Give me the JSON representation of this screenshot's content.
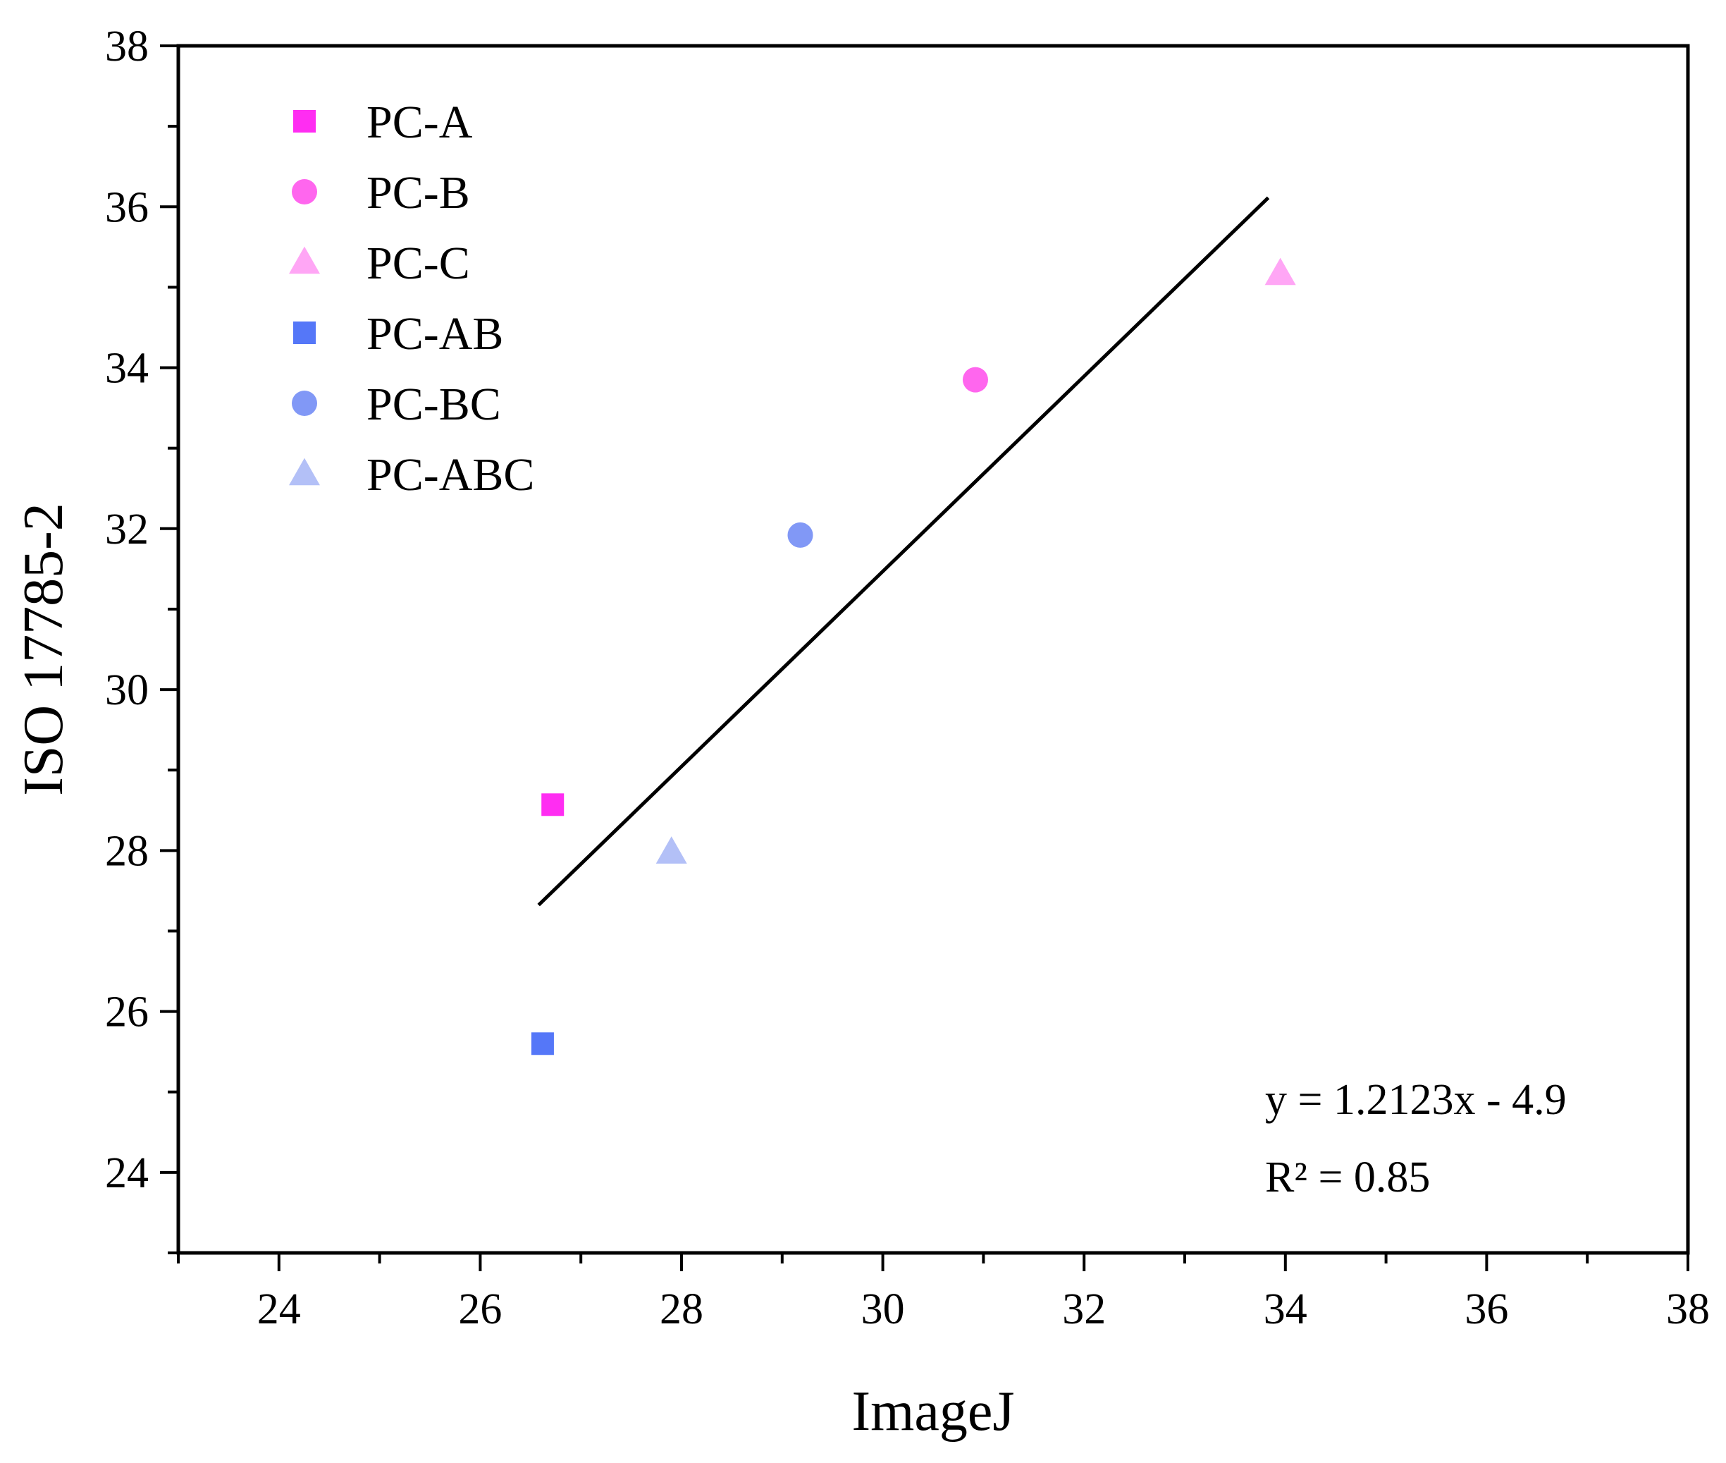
{
  "chart_data": {
    "type": "scatter",
    "title": "",
    "xlabel": "ImageJ",
    "ylabel": "ISO 17785-2",
    "xlim": [
      23,
      38
    ],
    "ylim": [
      23,
      38
    ],
    "xticks": [
      24,
      26,
      28,
      30,
      32,
      34,
      36,
      38
    ],
    "yticks": [
      24,
      26,
      28,
      30,
      32,
      34,
      36,
      38
    ],
    "x_tick_labels": [
      "24",
      "26",
      "28",
      "30",
      "32",
      "34",
      "36",
      "38"
    ],
    "y_tick_labels": [
      "24",
      "26",
      "28",
      "30",
      "32",
      "34",
      "36",
      "38"
    ],
    "grid": false,
    "legend_position": "top-left",
    "series": [
      {
        "name": "PC-A",
        "marker": "square",
        "color": "#ff2df2",
        "x": [
          26.72
        ],
        "y": [
          28.57
        ]
      },
      {
        "name": "PC-B",
        "marker": "circle",
        "color": "#ff66ee",
        "x": [
          30.92
        ],
        "y": [
          33.85
        ]
      },
      {
        "name": "PC-C",
        "marker": "triangle",
        "color": "#ffa6f5",
        "x": [
          33.95
        ],
        "y": [
          35.17
        ]
      },
      {
        "name": "PC-AB",
        "marker": "square",
        "color": "#5577f8",
        "x": [
          26.62
        ],
        "y": [
          25.6
        ]
      },
      {
        "name": "PC-BC",
        "marker": "circle",
        "color": "#8198f6",
        "x": [
          29.18
        ],
        "y": [
          31.92
        ]
      },
      {
        "name": "PC-ABC",
        "marker": "triangle",
        "color": "#b3c0f7",
        "x": [
          27.9
        ],
        "y": [
          27.98
        ]
      }
    ],
    "fit_line": {
      "slope": 1.2123,
      "intercept": -4.9,
      "x_range": [
        26.58,
        33.83
      ],
      "color": "#000000"
    },
    "annotations": [
      {
        "name": "fit-equation",
        "text": "y = 1.2123x - 4.9"
      },
      {
        "name": "r-squared",
        "text": "R² = 0.85"
      }
    ]
  }
}
